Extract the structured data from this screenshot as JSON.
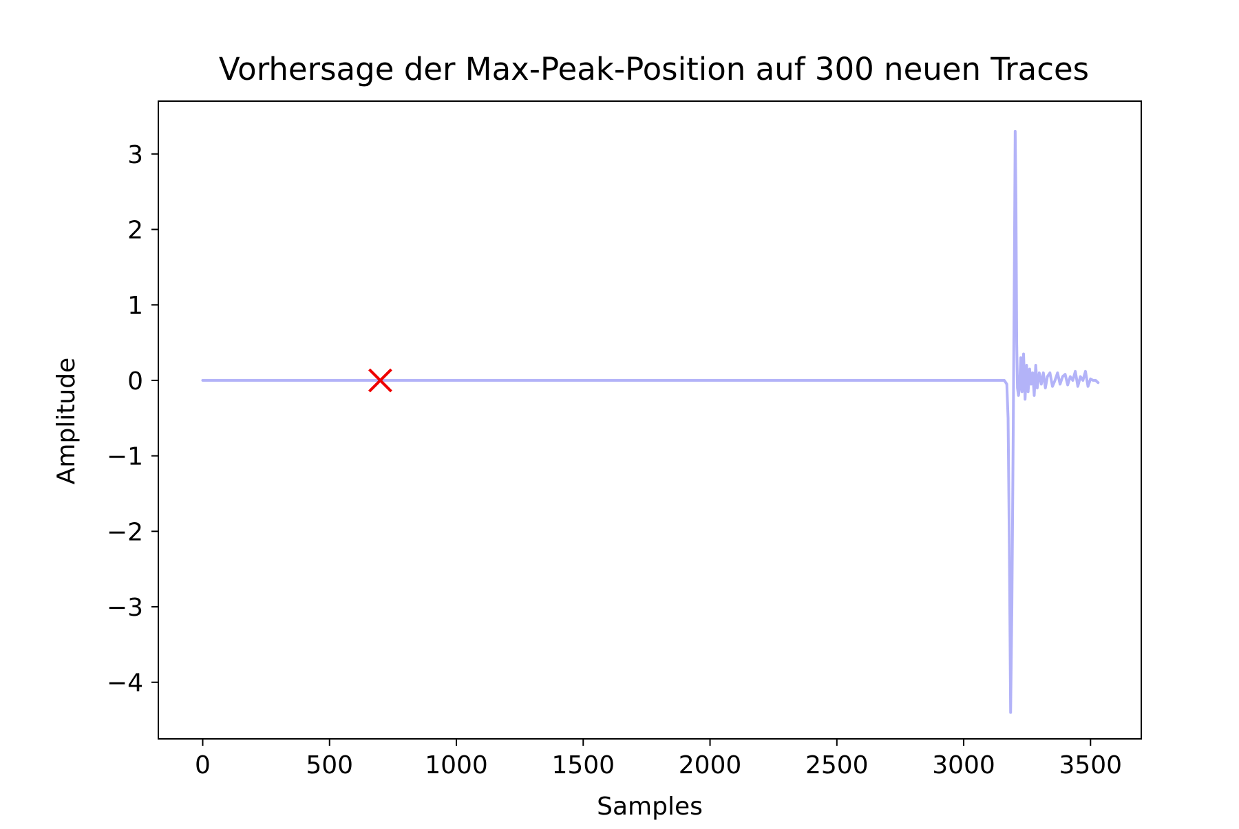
{
  "chart_data": {
    "type": "line",
    "title": "Vorhersage der Max-Peak-Position auf 300 neuen Traces",
    "xlabel": "Samples",
    "ylabel": "Amplitude",
    "xlim": [
      -175,
      3700
    ],
    "ylim": [
      -4.75,
      3.7
    ],
    "grid": false,
    "xticks": [
      0,
      500,
      1000,
      1500,
      2000,
      2500,
      3000,
      3500
    ],
    "xtick_labels": [
      "0",
      "500",
      "1000",
      "1500",
      "2000",
      "2500",
      "3000",
      "3500"
    ],
    "yticks": [
      -4,
      -3,
      -2,
      -1,
      0,
      1,
      2,
      3
    ],
    "ytick_labels": [
      "−4",
      "−3",
      "−2",
      "−1",
      "0",
      "1",
      "2",
      "3"
    ],
    "series": [
      {
        "color": "#b3b3f8",
        "x": [
          0,
          500,
          1000,
          1500,
          2000,
          2500,
          3000,
          3160,
          3170,
          3175,
          3180,
          3185,
          3190,
          3195,
          3200,
          3203,
          3206,
          3209,
          3212,
          3216,
          3220,
          3225,
          3230,
          3236,
          3242,
          3248,
          3254,
          3260,
          3266,
          3272,
          3278,
          3284,
          3290,
          3298,
          3306,
          3314,
          3322,
          3330,
          3340,
          3350,
          3360,
          3370,
          3380,
          3390,
          3400,
          3410,
          3420,
          3430,
          3440,
          3450,
          3460,
          3470,
          3480,
          3490,
          3500,
          3510,
          3520,
          3530
        ],
        "y": [
          0,
          0,
          0,
          0,
          0,
          0,
          0,
          0,
          -0.05,
          -0.5,
          -2.2,
          -4.4,
          -3.0,
          -0.8,
          1.6,
          3.3,
          2.4,
          0.5,
          -0.1,
          -0.2,
          -0.1,
          0.3,
          -0.15,
          0.35,
          -0.25,
          0.2,
          -0.15,
          0.15,
          -0.05,
          0.1,
          -0.2,
          0.2,
          -0.1,
          0.1,
          -0.05,
          0.1,
          -0.1,
          0.05,
          0.1,
          -0.08,
          0.0,
          0.1,
          -0.05,
          0.05,
          0.08,
          -0.06,
          0.05,
          0.0,
          0.12,
          -0.08,
          0.05,
          0.0,
          0.12,
          -0.08,
          0.02,
          0.0,
          0.0,
          -0.03
        ]
      }
    ],
    "markers": [
      {
        "x": 700,
        "y": 0,
        "symbol": "x",
        "color": "#ee0000"
      }
    ]
  }
}
